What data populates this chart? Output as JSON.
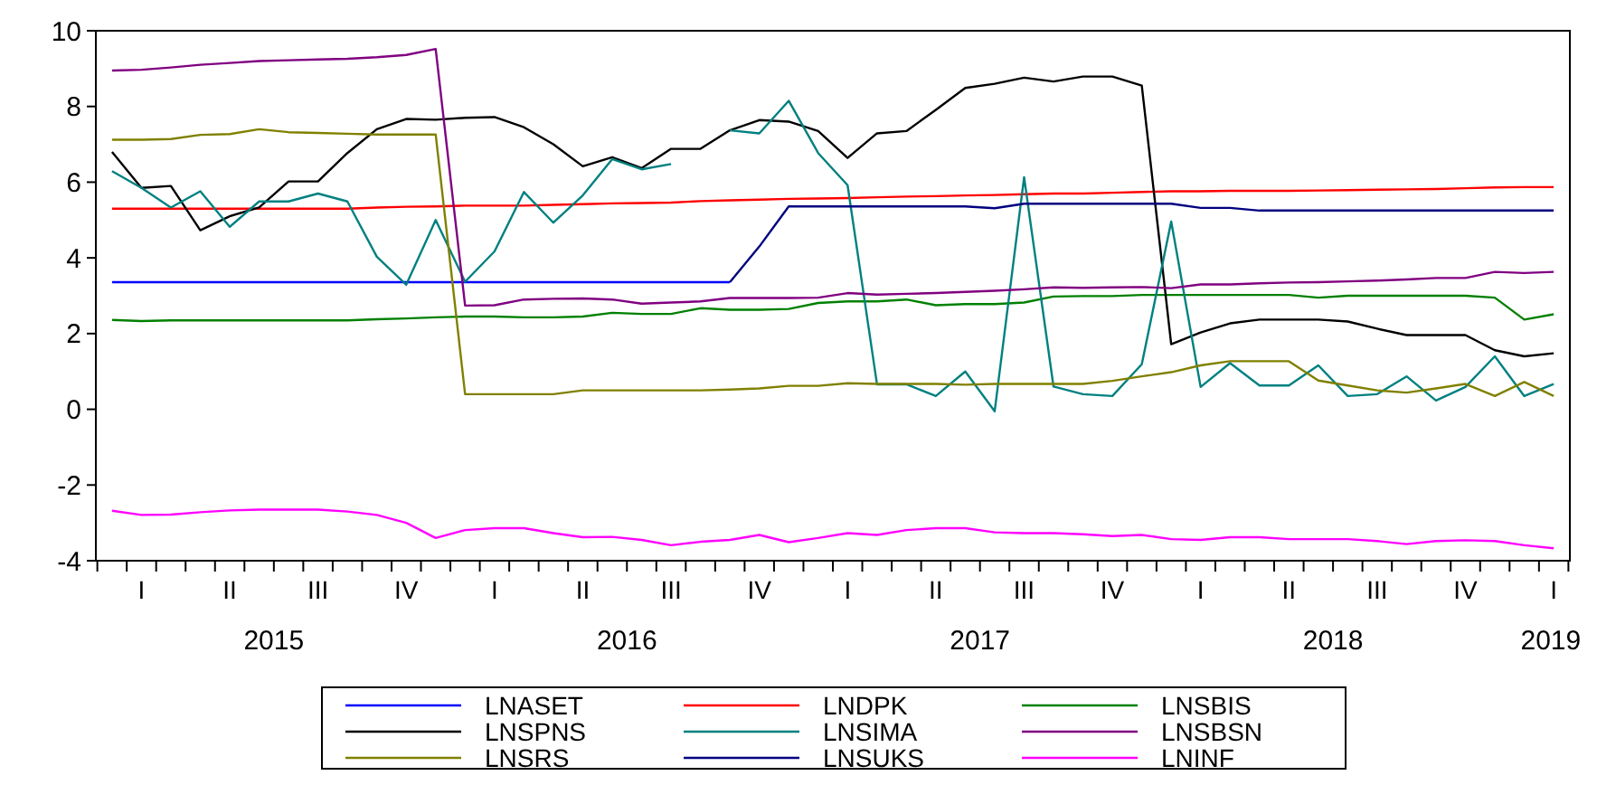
{
  "chart_data": {
    "type": "line",
    "categories": [
      null,
      "I",
      null,
      null,
      "II",
      null,
      null,
      "III",
      null,
      null,
      "IV",
      null,
      null,
      "I",
      null,
      null,
      "II",
      null,
      null,
      "III",
      null,
      null,
      "IV",
      null,
      null,
      "I",
      null,
      null,
      "II",
      null,
      null,
      "III",
      null,
      null,
      "IV",
      null,
      null,
      "I",
      null,
      null,
      "II",
      null,
      null,
      "III",
      null,
      null,
      "IV",
      null,
      null,
      "I"
    ],
    "ylim": [
      -4,
      10
    ],
    "yticks": [
      -4,
      -2,
      0,
      2,
      4,
      6,
      8,
      10
    ],
    "grid": false,
    "legend": "bottom",
    "marker": "none",
    "line_style": "solid",
    "annotations": [
      "2015",
      "2016",
      "2017",
      "2018",
      "2019"
    ],
    "series": [
      {
        "name": "LNASET",
        "color": "#0000ff",
        "values": [
          3.36,
          3.36,
          3.36,
          3.36,
          3.36,
          3.36,
          3.36,
          3.36,
          3.36,
          3.36,
          3.36,
          3.36,
          3.36,
          3.36,
          3.36,
          3.36,
          3.36,
          3.36,
          3.36,
          3.36,
          3.36,
          3.36,
          null,
          null,
          null,
          null,
          null,
          null,
          null,
          null,
          null,
          null,
          null,
          null,
          null,
          null,
          null,
          null,
          null,
          null,
          null,
          null,
          null,
          null,
          null,
          null,
          null,
          null,
          null,
          null
        ]
      },
      {
        "name": "LNDPK",
        "color": "#ff0000",
        "values": [
          5.3,
          5.3,
          5.3,
          5.3,
          5.3,
          5.3,
          5.3,
          5.3,
          5.3,
          5.33,
          5.35,
          5.36,
          5.38,
          5.38,
          5.38,
          5.4,
          5.42,
          5.44,
          5.45,
          5.46,
          5.5,
          5.52,
          5.54,
          5.56,
          5.57,
          5.58,
          5.6,
          5.62,
          5.63,
          5.65,
          5.66,
          5.68,
          5.7,
          5.7,
          5.72,
          5.74,
          5.76,
          5.76,
          5.77,
          5.77,
          5.77,
          5.78,
          5.79,
          5.8,
          5.81,
          5.82,
          5.84,
          5.86,
          5.87,
          5.87
        ]
      },
      {
        "name": "LNSBIS",
        "color": "#008000",
        "values": [
          2.36,
          2.33,
          2.35,
          2.35,
          2.35,
          2.35,
          2.35,
          2.35,
          2.35,
          2.38,
          2.4,
          2.43,
          2.45,
          2.45,
          2.43,
          2.43,
          2.45,
          2.55,
          2.52,
          2.52,
          2.67,
          2.63,
          2.63,
          2.65,
          2.81,
          2.85,
          2.85,
          2.9,
          2.75,
          2.78,
          2.78,
          2.82,
          2.98,
          2.99,
          2.99,
          3.02,
          3.02,
          3.02,
          3.02,
          3.02,
          3.02,
          2.95,
          3.0,
          3.0,
          3.0,
          3.0,
          3.0,
          2.95,
          2.37,
          2.51
        ]
      },
      {
        "name": "LNSPNS",
        "color": "#000000",
        "values": [
          6.8,
          5.85,
          5.9,
          4.73,
          5.1,
          5.33,
          6.02,
          6.02,
          6.77,
          7.4,
          7.67,
          7.65,
          7.7,
          7.72,
          7.45,
          7.0,
          6.42,
          6.66,
          6.37,
          6.88,
          6.88,
          7.37,
          7.64,
          7.6,
          7.35,
          6.64,
          7.29,
          7.35,
          7.91,
          8.49,
          8.6,
          8.76,
          8.66,
          8.79,
          8.79,
          8.55,
          1.72,
          2.03,
          2.27,
          2.37,
          2.37,
          2.37,
          2.32,
          2.13,
          1.96,
          1.96,
          1.96,
          1.56,
          1.4,
          1.48
        ]
      },
      {
        "name": "LNSIMA",
        "color": "#008080",
        "values": [
          6.29,
          5.85,
          5.33,
          5.76,
          4.82,
          5.49,
          5.49,
          5.7,
          5.49,
          4.03,
          3.29,
          5.0,
          3.37,
          4.17,
          5.74,
          4.93,
          5.65,
          6.61,
          6.34,
          6.48,
          null,
          7.37,
          7.29,
          8.15,
          6.77,
          5.92,
          0.66,
          0.66,
          0.35,
          1.0,
          -0.05,
          6.13,
          0.6,
          0.4,
          0.35,
          1.19,
          4.96,
          0.59,
          1.22,
          0.63,
          0.63,
          1.16,
          0.35,
          0.4,
          0.87,
          0.23,
          0.59,
          1.4,
          0.35,
          0.67
        ]
      },
      {
        "name": "LNSBSN",
        "color": "#800080",
        "values": [
          8.95,
          8.97,
          9.03,
          9.1,
          9.15,
          9.2,
          9.22,
          9.24,
          9.26,
          9.3,
          9.36,
          9.52,
          2.74,
          2.75,
          2.9,
          2.92,
          2.93,
          2.9,
          2.79,
          2.82,
          2.85,
          2.94,
          2.94,
          2.94,
          2.95,
          3.07,
          3.03,
          3.05,
          3.07,
          3.1,
          3.13,
          3.17,
          3.22,
          3.21,
          3.22,
          3.23,
          3.2,
          3.3,
          3.3,
          3.33,
          3.35,
          3.36,
          3.38,
          3.4,
          3.43,
          3.47,
          3.47,
          3.63,
          3.6,
          3.63
        ]
      },
      {
        "name": "LNSRS",
        "color": "#808000",
        "values": [
          7.12,
          7.12,
          7.14,
          7.25,
          7.27,
          7.4,
          7.32,
          7.3,
          7.28,
          7.26,
          7.26,
          7.26,
          0.4,
          0.4,
          0.4,
          0.4,
          0.5,
          0.5,
          0.5,
          0.5,
          0.5,
          0.52,
          0.55,
          0.62,
          0.62,
          0.69,
          0.67,
          0.67,
          0.67,
          0.65,
          0.67,
          0.67,
          0.67,
          0.67,
          0.75,
          0.87,
          0.98,
          1.16,
          1.27,
          1.27,
          1.27,
          0.76,
          0.63,
          0.5,
          0.44,
          0.55,
          0.67,
          0.35,
          0.72,
          0.35
        ]
      },
      {
        "name": "LNSUKS",
        "color": "#000080",
        "values": [
          null,
          null,
          null,
          null,
          null,
          null,
          null,
          null,
          null,
          null,
          null,
          null,
          null,
          null,
          null,
          null,
          null,
          null,
          null,
          null,
          null,
          3.36,
          4.3,
          5.36,
          5.36,
          5.36,
          5.36,
          5.36,
          5.36,
          5.36,
          5.31,
          5.43,
          5.43,
          5.43,
          5.43,
          5.43,
          5.43,
          5.32,
          5.32,
          5.25,
          5.25,
          5.25,
          5.25,
          5.25,
          5.25,
          5.25,
          5.25,
          5.25,
          5.25,
          5.25
        ]
      },
      {
        "name": "LNINF",
        "color": "#ff00ff",
        "values": [
          -2.68,
          -2.79,
          -2.78,
          -2.72,
          -2.67,
          -2.65,
          -2.65,
          -2.65,
          -2.7,
          -2.79,
          -3.0,
          -3.4,
          -3.19,
          -3.14,
          -3.14,
          -3.27,
          -3.38,
          -3.37,
          -3.45,
          -3.59,
          -3.5,
          -3.45,
          -3.32,
          -3.51,
          -3.4,
          -3.27,
          -3.32,
          -3.19,
          -3.14,
          -3.14,
          -3.25,
          -3.27,
          -3.27,
          -3.3,
          -3.35,
          -3.32,
          -3.43,
          -3.45,
          -3.38,
          -3.38,
          -3.43,
          -3.43,
          -3.43,
          -3.48,
          -3.56,
          -3.48,
          -3.46,
          -3.48,
          -3.59,
          -3.67
        ]
      }
    ]
  }
}
